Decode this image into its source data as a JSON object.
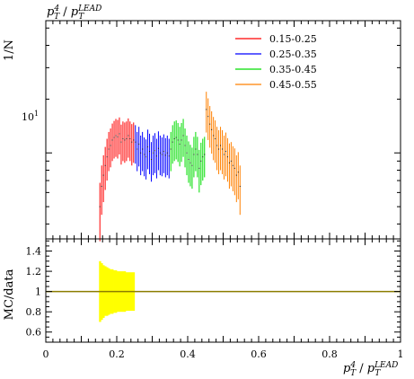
{
  "chart_data": {
    "type": "line",
    "title": {
      "base": "p",
      "sup": "4",
      "sub": "T",
      "sep": " / ",
      "base2": "p",
      "sup2": "LEAD",
      "sub2": "T"
    },
    "xlabel": {
      "base": "p",
      "sup": "4",
      "sub": "T",
      "sep": " / ",
      "base2": "p",
      "sup2": "LEAD",
      "sub2": "T"
    },
    "ylabel": "1/N",
    "ratio_ylabel": "MC/data",
    "xlim": [
      0,
      1
    ],
    "ylim_log": [
      3.3,
      55
    ],
    "yscale": "log",
    "main_ytick_labels": [
      {
        "value": 10,
        "base": "10",
        "sup": "1"
      }
    ],
    "ratio_ylim": [
      0.5,
      1.52
    ],
    "ratio_ytick_labels": [
      {
        "value": 0.6,
        "label": "0.6"
      },
      {
        "value": 0.8,
        "label": "0.8"
      },
      {
        "value": 1.0,
        "label": "1"
      },
      {
        "value": 1.2,
        "label": "1.2"
      },
      {
        "value": 1.4,
        "label": "1.4"
      }
    ],
    "xtick_labels": [
      {
        "value": 0,
        "label": "0"
      },
      {
        "value": 0.2,
        "label": "0.2"
      },
      {
        "value": 0.4,
        "label": "0.4"
      },
      {
        "value": 0.6,
        "label": "0.6"
      },
      {
        "value": 0.8,
        "label": "0.8"
      },
      {
        "value": 1,
        "label": "1"
      }
    ],
    "legend_position": "top-right",
    "series": [
      {
        "name": "0.15-0.25",
        "color": "#ff0000",
        "x_range": [
          0.15,
          0.25
        ],
        "bins": 20,
        "values": [
          5.0,
          6.5,
          7.5,
          8.5,
          9.5,
          10.5,
          11.0,
          11.8,
          12.2,
          12.5,
          12.3,
          12.8,
          11.5,
          12.0,
          11.8,
          12.0,
          12.5,
          12.0,
          11.5,
          11.8
        ],
        "errors": [
          1.8,
          2.0,
          2.2,
          2.3,
          2.5,
          2.6,
          2.7,
          2.8,
          2.9,
          3.0,
          3.0,
          3.0,
          2.9,
          3.0,
          3.0,
          3.0,
          3.1,
          3.0,
          3.0,
          3.0
        ]
      },
      {
        "name": "0.25-0.35",
        "color": "#0000ff",
        "x_range": [
          0.25,
          0.35
        ],
        "bins": 20,
        "values": [
          11.5,
          10.5,
          11.2,
          10.0,
          10.5,
          9.8,
          9.5,
          10.8,
          10.2,
          9.2,
          10.0,
          10.3,
          9.6,
          10.6,
          10.0,
          9.8,
          10.2,
          9.7,
          10.0,
          9.6
        ],
        "errors": [
          2.8,
          2.6,
          2.8,
          2.5,
          2.6,
          2.4,
          2.4,
          2.7,
          2.6,
          2.3,
          2.5,
          2.6,
          2.4,
          2.6,
          2.5,
          2.4,
          2.5,
          2.4,
          2.5,
          2.4
        ]
      },
      {
        "name": "0.35-0.45",
        "color": "#00dd00",
        "x_range": [
          0.35,
          0.45
        ],
        "bins": 20,
        "values": [
          10.5,
          11.5,
          12.0,
          12.2,
          11.8,
          11.2,
          11.8,
          12.5,
          11.0,
          10.0,
          9.2,
          8.8,
          8.5,
          9.8,
          10.5,
          9.8,
          8.2,
          9.0,
          9.5,
          9.8
        ],
        "errors": [
          2.6,
          2.8,
          3.0,
          3.0,
          2.9,
          2.8,
          2.9,
          3.0,
          2.7,
          2.5,
          2.4,
          2.3,
          2.2,
          2.5,
          2.6,
          2.5,
          2.2,
          2.4,
          2.5,
          2.5
        ]
      },
      {
        "name": "0.45-0.55",
        "color": "#ff8000",
        "x_range": [
          0.45,
          0.55
        ],
        "bins": 20,
        "values": [
          17.5,
          16.0,
          14.5,
          13.5,
          12.5,
          12.0,
          11.0,
          10.5,
          11.0,
          10.5,
          9.8,
          10.2,
          9.5,
          8.8,
          9.0,
          8.5,
          8.2,
          7.5,
          7.8,
          6.5
        ],
        "errors": [
          4.5,
          4.2,
          3.8,
          3.6,
          3.4,
          3.2,
          3.0,
          2.9,
          3.0,
          2.9,
          2.7,
          2.8,
          2.6,
          2.5,
          2.5,
          2.4,
          2.4,
          2.2,
          2.3,
          2.0
        ]
      }
    ],
    "ratio_band": {
      "color": "#ffff00",
      "x_range": [
        0.15,
        0.25
      ],
      "bins": 20,
      "lower": [
        0.7,
        0.72,
        0.74,
        0.76,
        0.76,
        0.77,
        0.78,
        0.78,
        0.79,
        0.79,
        0.8,
        0.8,
        0.8,
        0.8,
        0.8,
        0.81,
        0.81,
        0.81,
        0.81,
        0.81
      ],
      "upper": [
        1.3,
        1.28,
        1.26,
        1.25,
        1.24,
        1.23,
        1.22,
        1.22,
        1.21,
        1.21,
        1.2,
        1.2,
        1.2,
        1.2,
        1.2,
        1.19,
        1.19,
        1.19,
        1.19,
        1.19
      ]
    },
    "ratio_reference": {
      "value": 1.0,
      "color": "#8b7d00"
    }
  }
}
